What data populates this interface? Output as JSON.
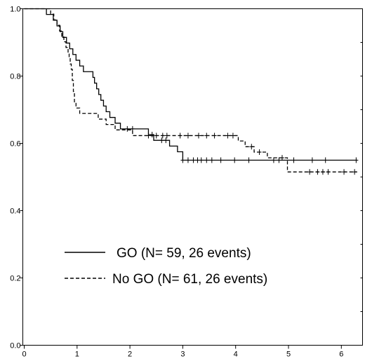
{
  "chart_data": {
    "type": "line",
    "subtype": "kaplan-meier step",
    "title": "",
    "xlabel": "",
    "ylabel": "",
    "xlim": [
      0,
      6.3
    ],
    "ylim": [
      0,
      1.0
    ],
    "xticks": [
      "0",
      "1",
      "2",
      "3",
      "4",
      "5",
      "6"
    ],
    "yticks": [
      "0.0",
      "0.2",
      "0.4",
      "0.6",
      "0.8",
      "1.0"
    ],
    "grid": false,
    "legend": "bottom-left inside plot",
    "series": [
      {
        "name": "GO  (N= 59, 26 events)",
        "line_style": "solid",
        "color": "#000000",
        "steps": [
          [
            0,
            1.0
          ],
          [
            0.42,
            0.983
          ],
          [
            0.55,
            0.966
          ],
          [
            0.62,
            0.949
          ],
          [
            0.68,
            0.932
          ],
          [
            0.73,
            0.915
          ],
          [
            0.8,
            0.898
          ],
          [
            0.86,
            0.881
          ],
          [
            0.92,
            0.864
          ],
          [
            0.98,
            0.847
          ],
          [
            1.05,
            0.83
          ],
          [
            1.12,
            0.813
          ],
          [
            1.3,
            0.796
          ],
          [
            1.33,
            0.779
          ],
          [
            1.37,
            0.762
          ],
          [
            1.41,
            0.745
          ],
          [
            1.45,
            0.728
          ],
          [
            1.5,
            0.711
          ],
          [
            1.55,
            0.694
          ],
          [
            1.62,
            0.677
          ],
          [
            1.72,
            0.66
          ],
          [
            1.82,
            0.643
          ],
          [
            2.35,
            0.626
          ],
          [
            2.45,
            0.609
          ],
          [
            2.75,
            0.592
          ],
          [
            2.9,
            0.575
          ],
          [
            3.0,
            0.55
          ],
          [
            6.3,
            0.55
          ]
        ],
        "censored": [
          1.95,
          2.05,
          2.42,
          2.6,
          2.68,
          3.0,
          3.1,
          3.2,
          3.28,
          3.35,
          3.45,
          3.55,
          3.72,
          3.98,
          4.25,
          4.72,
          4.82,
          5.1,
          5.45,
          5.7,
          6.28
        ]
      },
      {
        "name": "No GO  (N= 61, 26 events)",
        "line_style": "dashed",
        "color": "#000000",
        "steps": [
          [
            0,
            1.0
          ],
          [
            0.5,
            0.984
          ],
          [
            0.56,
            0.967
          ],
          [
            0.62,
            0.951
          ],
          [
            0.67,
            0.934
          ],
          [
            0.71,
            0.918
          ],
          [
            0.75,
            0.902
          ],
          [
            0.79,
            0.885
          ],
          [
            0.83,
            0.869
          ],
          [
            0.85,
            0.852
          ],
          [
            0.87,
            0.836
          ],
          [
            0.89,
            0.82
          ],
          [
            0.91,
            0.787
          ],
          [
            0.93,
            0.754
          ],
          [
            0.95,
            0.721
          ],
          [
            0.98,
            0.705
          ],
          [
            1.05,
            0.689
          ],
          [
            1.4,
            0.672
          ],
          [
            1.55,
            0.656
          ],
          [
            1.72,
            0.64
          ],
          [
            2.05,
            0.623
          ],
          [
            4.05,
            0.607
          ],
          [
            4.18,
            0.59
          ],
          [
            4.35,
            0.574
          ],
          [
            4.6,
            0.557
          ],
          [
            4.98,
            0.515
          ],
          [
            6.3,
            0.515
          ]
        ],
        "censored": [
          2.35,
          2.5,
          2.62,
          2.7,
          2.95,
          3.1,
          3.3,
          3.45,
          3.6,
          3.85,
          3.95,
          4.3,
          4.45,
          4.88,
          5.4,
          5.55,
          5.65,
          5.75,
          6.05,
          6.25
        ]
      }
    ]
  }
}
